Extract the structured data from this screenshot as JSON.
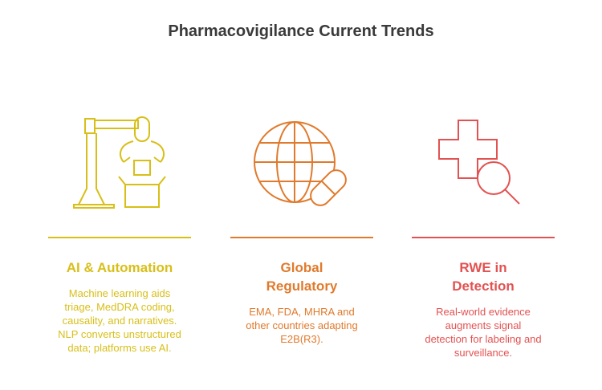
{
  "title": "Pharmacovigilance Current Trends",
  "columns": [
    {
      "heading": "AI & Automation",
      "body": "Machine learning aids triage, MedDRA coding, causality, and narratives. NLP converts unstructured data; platforms use AI."
    },
    {
      "heading": "Global Regulatory",
      "body": "EMA, FDA, MHRA and other countries adapting E2B(R3)."
    },
    {
      "heading": "RWE in Detection",
      "body": "Real-world evidence augments signal detection for labeling and surveillance."
    }
  ]
}
